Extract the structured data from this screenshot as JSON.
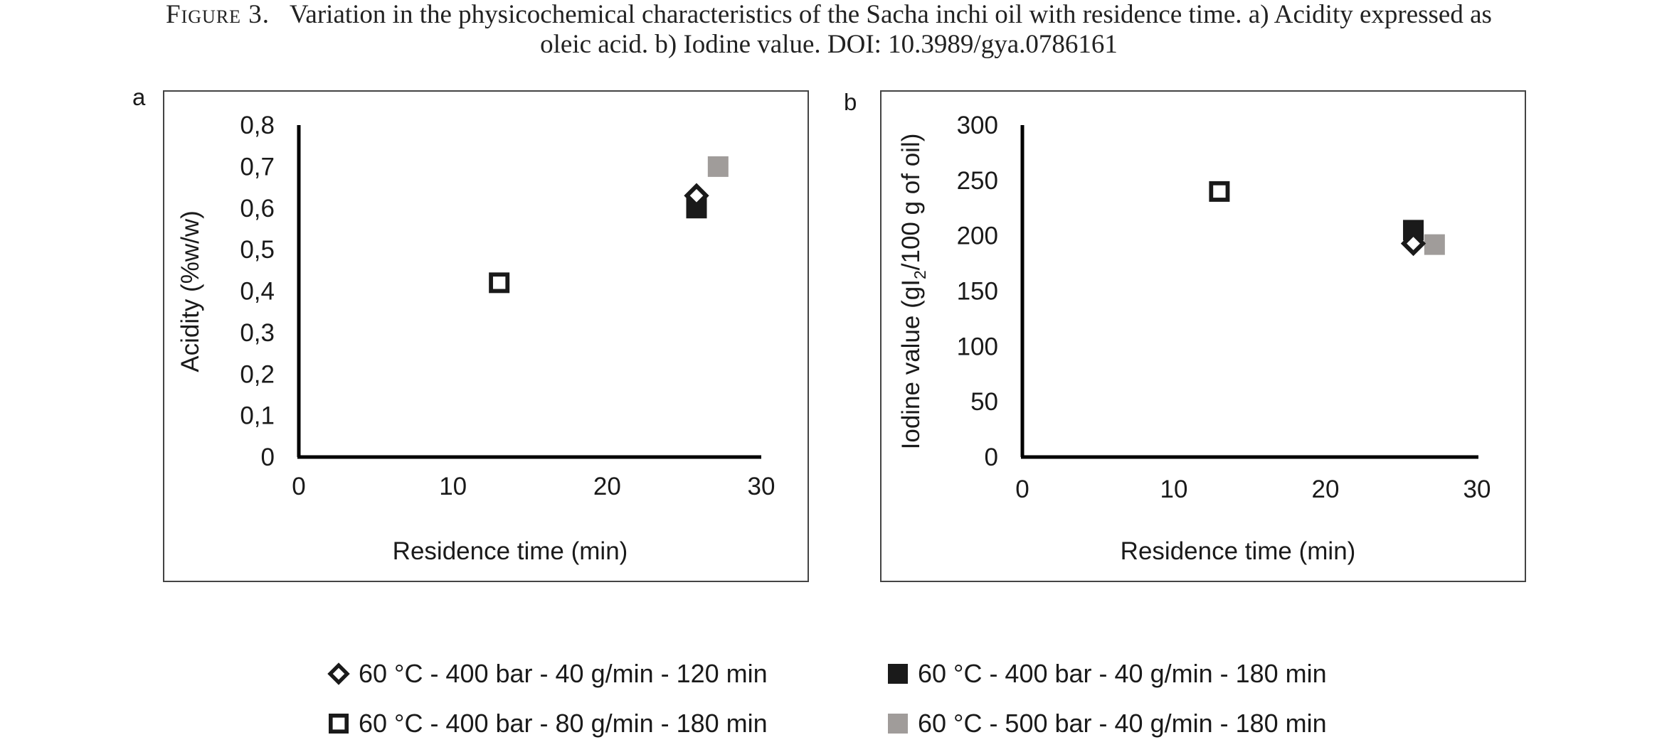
{
  "caption": {
    "label": "Figure 3.",
    "line1": "Variation in the physicochemical characteristics of the Sacha inchi oil with residence time. a) Acidity expressed as",
    "line2": "oleic acid. b) Iodine value. DOI: 10.3989/gya.0786161"
  },
  "legend": {
    "placement": "bottom",
    "items": [
      {
        "label": "60 °C - 400 bar - 40 g/min - 120 min",
        "marker": "diamond-open",
        "color": "#1a1a1a"
      },
      {
        "label": "60 °C - 400 bar - 40 g/min - 180 min",
        "marker": "square-filled",
        "color": "#1a1a1a"
      },
      {
        "label": "60 °C - 400 bar - 80 g/min - 180 min",
        "marker": "square-open",
        "color": "#1a1a1a"
      },
      {
        "label": "60 °C - 500 bar - 40 g/min - 180 min",
        "marker": "square-filled",
        "color": "#a09c9a"
      }
    ]
  },
  "chart_data": [
    {
      "type": "scatter",
      "panel_label": "a",
      "xlabel": "Residence time (min)",
      "ylabel": "Acidity (%w/w)",
      "xlim": [
        0,
        30
      ],
      "ylim": [
        0,
        0.8
      ],
      "xticks": [
        "0",
        "10",
        "20",
        "30"
      ],
      "yticks": [
        "0",
        "0,1",
        "0,2",
        "0,3",
        "0,4",
        "0,5",
        "0,6",
        "0,7",
        "0,8"
      ],
      "grid": false,
      "series": [
        {
          "legend_index": 0,
          "points": [
            [
              25.8,
              0.63
            ]
          ]
        },
        {
          "legend_index": 1,
          "points": [
            [
              25.8,
              0.6
            ]
          ]
        },
        {
          "legend_index": 2,
          "points": [
            [
              13,
              0.42
            ]
          ]
        },
        {
          "legend_index": 3,
          "points": [
            [
              27.2,
              0.7
            ]
          ]
        }
      ]
    },
    {
      "type": "scatter",
      "panel_label": "b",
      "xlabel": "Residence time (min)",
      "ylabel_parts": [
        "Iodine value (gI",
        "2",
        "/100 g of oil)"
      ],
      "xlim": [
        0,
        30
      ],
      "ylim": [
        0,
        300
      ],
      "xticks": [
        "0",
        "10",
        "20",
        "30"
      ],
      "yticks": [
        "0",
        "50",
        "100",
        "150",
        "200",
        "250",
        "300"
      ],
      "grid": false,
      "series": [
        {
          "legend_index": 0,
          "points": [
            [
              25.8,
              193
            ]
          ]
        },
        {
          "legend_index": 1,
          "points": [
            [
              25.8,
              205
            ]
          ]
        },
        {
          "legend_index": 2,
          "points": [
            [
              13,
              240
            ]
          ]
        },
        {
          "legend_index": 3,
          "points": [
            [
              27.2,
              192
            ]
          ]
        }
      ]
    }
  ]
}
